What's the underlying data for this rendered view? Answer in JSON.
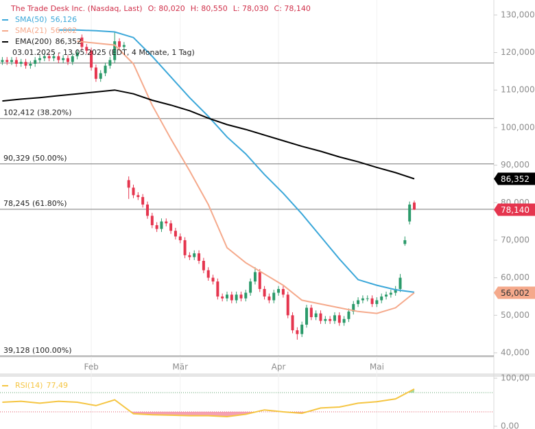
{
  "chart_data": {
    "type": "candlestick",
    "title": "The Trade Desk Inc. (Nasdaq, Last)",
    "ohlc_labels": [
      "O: 80,020",
      "H: 80,550",
      "L: 78,030",
      "C: 78,140"
    ],
    "subtitle": "03.01.2025 - 13.05.2025  (EDT, 4 Monate, 1 Tag)",
    "xlim": [
      -0.5,
      105
    ],
    "xticks": [
      {
        "value": 19,
        "label": "Feb"
      },
      {
        "value": 38,
        "label": "Mär"
      },
      {
        "value": 59,
        "label": "Apr"
      },
      {
        "value": 80,
        "label": "Mai"
      }
    ],
    "ylim": [
      38.9,
      134
    ],
    "yticks": [
      {
        "value": 40,
        "label": "40,000"
      },
      {
        "value": 50,
        "label": "50,000"
      },
      {
        "value": 60,
        "label": "60,000"
      },
      {
        "value": 70,
        "label": "70,000"
      },
      {
        "value": 80,
        "label": "80,000"
      },
      {
        "value": 90,
        "label": "90,000"
      },
      {
        "value": 100,
        "label": "100,000"
      },
      {
        "value": 110,
        "label": "110,000"
      },
      {
        "value": 120,
        "label": "120,000"
      },
      {
        "value": 130,
        "label": "130,000"
      }
    ],
    "candles": {
      "up_color": "#2b9a6a",
      "down_color": "#e5354e",
      "last_label": "78,140",
      "open": [
        117.5,
        118,
        117.5,
        118,
        117,
        117.5,
        116.5,
        117,
        118,
        118.5,
        119,
        118.5,
        119,
        118,
        118.5,
        117.5,
        119,
        124,
        121.5,
        120.5,
        116,
        113,
        114.5,
        116.5,
        118,
        123,
        121.5,
        86,
        84,
        82,
        81.5,
        79.5,
        76.5,
        74,
        73,
        75,
        74.5,
        72.5,
        71,
        70,
        66,
        65.5,
        66.5,
        64.5,
        62,
        60,
        59,
        55,
        54.5,
        55.5,
        54,
        55.5,
        54.5,
        56,
        59,
        61.5,
        57,
        55,
        54,
        56,
        57,
        55.5,
        50,
        46,
        45,
        47.5,
        52,
        49.5,
        50.5,
        48.5,
        49,
        48.5,
        50,
        48,
        49,
        51,
        53,
        54,
        54.5,
        54.5,
        53,
        54,
        55,
        55.5,
        56,
        57,
        69,
        75,
        80.02
      ],
      "high": [
        118.8,
        118.8,
        118.8,
        118.8,
        118.3,
        118.3,
        117.8,
        118.8,
        119.3,
        119.8,
        119.8,
        119.8,
        119.8,
        119.3,
        119.3,
        119.8,
        120.8,
        124.8,
        122.3,
        121.3,
        116.8,
        115.3,
        117.3,
        118.8,
        125.5,
        123.8,
        122.8,
        87,
        84.8,
        82.8,
        82.3,
        80.3,
        77.3,
        74.8,
        75.8,
        75.8,
        75.3,
        73.3,
        71.8,
        70.8,
        66.8,
        67.3,
        67.3,
        65.3,
        62.8,
        60.8,
        59.8,
        55.8,
        56.3,
        56.3,
        56.3,
        56.3,
        56.8,
        59.8,
        62.8,
        62.3,
        57.8,
        55.8,
        56.8,
        57.8,
        57.8,
        56.3,
        50.8,
        46.8,
        48.3,
        52.8,
        52.8,
        51.3,
        51.3,
        49.8,
        49.8,
        50.8,
        50.8,
        49.8,
        51.8,
        53.8,
        54.8,
        55.3,
        55.3,
        55.3,
        54.8,
        55.8,
        56.3,
        56.8,
        57.8,
        61,
        71,
        80.3,
        80.55
      ],
      "low": [
        116.7,
        116.7,
        116.7,
        116.2,
        116.2,
        115.7,
        115.7,
        116.2,
        117.2,
        117.7,
        117.7,
        117.7,
        117.2,
        117.2,
        116.7,
        116.7,
        118.2,
        120.7,
        119.7,
        115.2,
        112.2,
        112.2,
        113.7,
        115.7,
        117.2,
        120.7,
        120.7,
        81,
        81.2,
        80.7,
        78.7,
        75.7,
        73.2,
        72.2,
        72.2,
        73.7,
        71.7,
        70.2,
        69.2,
        65.2,
        64.7,
        64.7,
        63.7,
        61.2,
        59.2,
        58.2,
        54.2,
        53.7,
        53.7,
        53.2,
        53.2,
        53.7,
        53.7,
        55.2,
        58.2,
        56.2,
        54.2,
        53.2,
        53.2,
        55.2,
        54.7,
        49.2,
        45.2,
        43.5,
        44.2,
        46.7,
        48.7,
        48.7,
        47.7,
        47.7,
        47.7,
        47.7,
        47.2,
        47.2,
        48.2,
        50.2,
        52.2,
        53.2,
        53.7,
        52.2,
        52.2,
        53.2,
        54.2,
        54.7,
        55.2,
        56.2,
        68.5,
        74.2,
        78.03
      ],
      "close": [
        118,
        117.5,
        118,
        117,
        117.5,
        116.5,
        117,
        118,
        118.5,
        119,
        118.5,
        119,
        118,
        118.5,
        117.5,
        119,
        120,
        121.5,
        120.5,
        116,
        113,
        114.5,
        116.5,
        118,
        123,
        121.5,
        122,
        84,
        82,
        81.5,
        79.5,
        76.5,
        74,
        73,
        75,
        74.5,
        72.5,
        71,
        70,
        66,
        65.5,
        66.5,
        64.5,
        62,
        60,
        59,
        55,
        54.5,
        55.5,
        54,
        55.5,
        54.5,
        56,
        59,
        61.5,
        57,
        55,
        54,
        56,
        57,
        55.5,
        50,
        46,
        45,
        47.5,
        52,
        49.5,
        50.5,
        48.5,
        49,
        48.5,
        50,
        48,
        49,
        51,
        53,
        54,
        54.5,
        54.5,
        53,
        54,
        55,
        55.5,
        56,
        57,
        60,
        70,
        79.5,
        78.14
      ]
    },
    "series": [
      {
        "name": "SMA(50)",
        "color": "#3aa7d9",
        "last_label": "56,126",
        "x": [
          12,
          16,
          20,
          24,
          28,
          32,
          36,
          40,
          44,
          48,
          52,
          56,
          60,
          64,
          68,
          72,
          76,
          80,
          84,
          88
        ],
        "values": [
          126,
          126,
          125.8,
          125.5,
          124,
          119,
          113.5,
          108,
          103,
          97.5,
          93,
          87.5,
          82.5,
          77,
          71,
          65,
          59.5,
          58,
          56.8,
          56.126
        ]
      },
      {
        "name": "SMA(21)",
        "color": "#f5a98b",
        "last_label": "56,002",
        "tag": true,
        "x": [
          16,
          20,
          24,
          28,
          32,
          36,
          40,
          44,
          48,
          52,
          56,
          60,
          64,
          68,
          72,
          76,
          80,
          84,
          88
        ],
        "values": [
          123,
          122.5,
          122,
          117,
          106,
          97,
          88.5,
          79.5,
          68,
          64,
          61,
          58,
          54,
          53,
          52,
          51,
          50.5,
          52,
          56.002
        ]
      },
      {
        "name": "EMA(200)",
        "color": "#000000",
        "last_label": "86,352",
        "tag": true,
        "x": [
          0,
          4,
          8,
          12,
          16,
          20,
          24,
          28,
          32,
          36,
          40,
          44,
          48,
          52,
          56,
          60,
          64,
          68,
          72,
          76,
          80,
          84,
          88
        ],
        "values": [
          107.1,
          107.6,
          108,
          108.5,
          109,
          109.5,
          110,
          109,
          107.3,
          106,
          104.5,
          102.5,
          100.8,
          99.5,
          98,
          96.5,
          95,
          93.7,
          92.2,
          90.9,
          89.4,
          88,
          86.352
        ]
      }
    ],
    "levels": [
      {
        "value": 117.2
      },
      {
        "value": 102.412,
        "label": "102,412 (38.20%)"
      },
      {
        "value": 90.329,
        "label": "90,329 (50.00%)"
      },
      {
        "value": 78.245,
        "label": "78,245 (61.80%)"
      },
      {
        "value": 39.128,
        "label": "39,128 (100.00%)"
      }
    ],
    "rsi": {
      "name": "RSI(14)",
      "color": "#f5c542",
      "last_label": "77,49",
      "ylim": [
        0,
        100
      ],
      "yticks": [
        {
          "value": 100,
          "label": "100,00"
        },
        {
          "value": 0,
          "label": "0,00"
        }
      ],
      "bands": [
        30,
        70
      ],
      "x": [
        0,
        4,
        8,
        12,
        16,
        20,
        24,
        28,
        32,
        36,
        40,
        44,
        48,
        52,
        56,
        60,
        64,
        68,
        72,
        76,
        80,
        84,
        88
      ],
      "values": [
        50,
        52,
        48,
        52,
        50,
        43,
        55,
        26,
        24,
        23,
        22,
        22,
        20,
        25,
        34,
        30,
        27,
        38,
        40,
        48,
        51,
        57,
        77.49
      ]
    }
  }
}
